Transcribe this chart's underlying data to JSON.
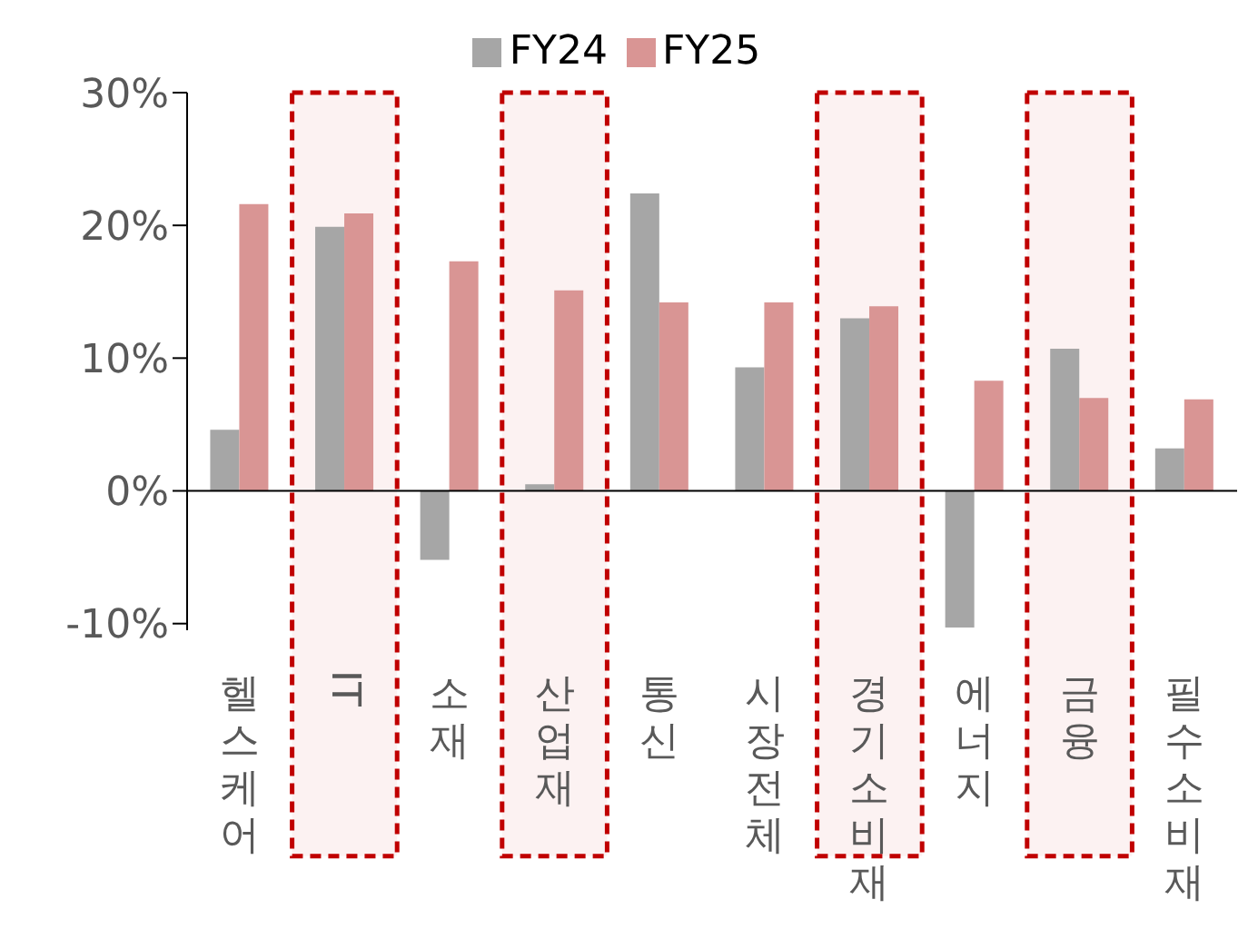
{
  "chart_data": {
    "type": "bar",
    "categories": [
      "헬스케어",
      "IT",
      "소재",
      "산업재",
      "통신",
      "시장전체",
      "경기소비재",
      "에너지",
      "금융",
      "필수소비재"
    ],
    "series": [
      {
        "name": "FY24",
        "color": "#a6a6a6",
        "values": [
          4.6,
          19.9,
          -5.2,
          0.5,
          22.4,
          9.3,
          13.0,
          -10.3,
          10.7,
          3.2
        ]
      },
      {
        "name": "FY25",
        "color": "#d99594",
        "values": [
          21.6,
          20.9,
          17.3,
          15.1,
          14.2,
          14.2,
          13.9,
          8.3,
          7.0,
          6.9
        ]
      }
    ],
    "ylim": [
      -10.5,
      30
    ],
    "yticks": [
      {
        "value": -10,
        "label": "-10%"
      },
      {
        "value": 0,
        "label": "0%"
      },
      {
        "value": 10,
        "label": "10%"
      },
      {
        "value": 20,
        "label": "20%"
      },
      {
        "value": 30,
        "label": "30%"
      }
    ],
    "legend": "top",
    "bands": [
      {
        "axis": "x",
        "from": "IT",
        "to": "IT",
        "color": "#c00000"
      },
      {
        "axis": "x",
        "from": "산업재",
        "to": "산업재",
        "color": "#c00000"
      },
      {
        "axis": "x",
        "from": "경기소비재",
        "to": "경기소비재",
        "color": "#c00000"
      },
      {
        "axis": "x",
        "from": "금융",
        "to": "금융",
        "color": "#c00000"
      }
    ]
  }
}
